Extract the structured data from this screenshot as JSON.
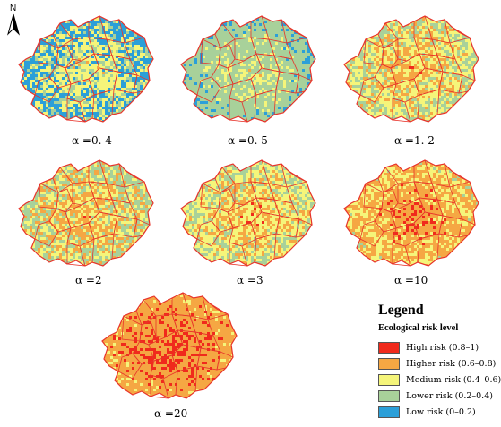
{
  "north_arrow": {
    "label": "N"
  },
  "panels": [
    {
      "label": "α =0. 4",
      "palette": [
        "#2b9fd8",
        "#a8d19a",
        "#f5f57a",
        "#f5a743"
      ],
      "weights": [
        0.38,
        0.14,
        0.4,
        0.08
      ]
    },
    {
      "label": "α =0. 5",
      "palette": [
        "#2b9fd8",
        "#a8d19a",
        "#f5f57a",
        "#f5a743"
      ],
      "weights": [
        0.12,
        0.58,
        0.26,
        0.04
      ]
    },
    {
      "label": "α =1. 2",
      "palette": [
        "#a8d19a",
        "#f5f57a",
        "#f5a743",
        "#f02a1c"
      ],
      "weights": [
        0.3,
        0.3,
        0.36,
        0.04
      ]
    },
    {
      "label": "α =2",
      "palette": [
        "#a8d19a",
        "#f5f57a",
        "#f5a743",
        "#f02a1c"
      ],
      "weights": [
        0.34,
        0.22,
        0.4,
        0.04
      ]
    },
    {
      "label": "α =3",
      "palette": [
        "#a8d19a",
        "#f5f57a",
        "#f5a743",
        "#f02a1c"
      ],
      "weights": [
        0.28,
        0.34,
        0.32,
        0.06
      ]
    },
    {
      "label": "α =10",
      "palette": [
        "#a8d19a",
        "#f5f57a",
        "#f5a743",
        "#f02a1c"
      ],
      "weights": [
        0.02,
        0.3,
        0.48,
        0.2
      ]
    },
    {
      "label": "α =20",
      "palette": [
        "#f5f57a",
        "#f5a743",
        "#f02a1c"
      ],
      "weights": [
        0.08,
        0.56,
        0.36
      ]
    }
  ],
  "legend": {
    "title": "Legend",
    "subtitle": "Ecological risk level",
    "items": [
      {
        "label": "High risk (0.8–1)",
        "color": "#f02a1c"
      },
      {
        "label": "Higher risk (0.6–0.8)",
        "color": "#f5a743"
      },
      {
        "label": "Medium risk (0.4–0.6)",
        "color": "#f5f57a"
      },
      {
        "label": "Lower risk (0.2–0.4)",
        "color": "#a8d19a"
      },
      {
        "label": "Low risk (0–0.2)",
        "color": "#2b9fd8"
      }
    ]
  },
  "boundary_color": "#e8332a"
}
